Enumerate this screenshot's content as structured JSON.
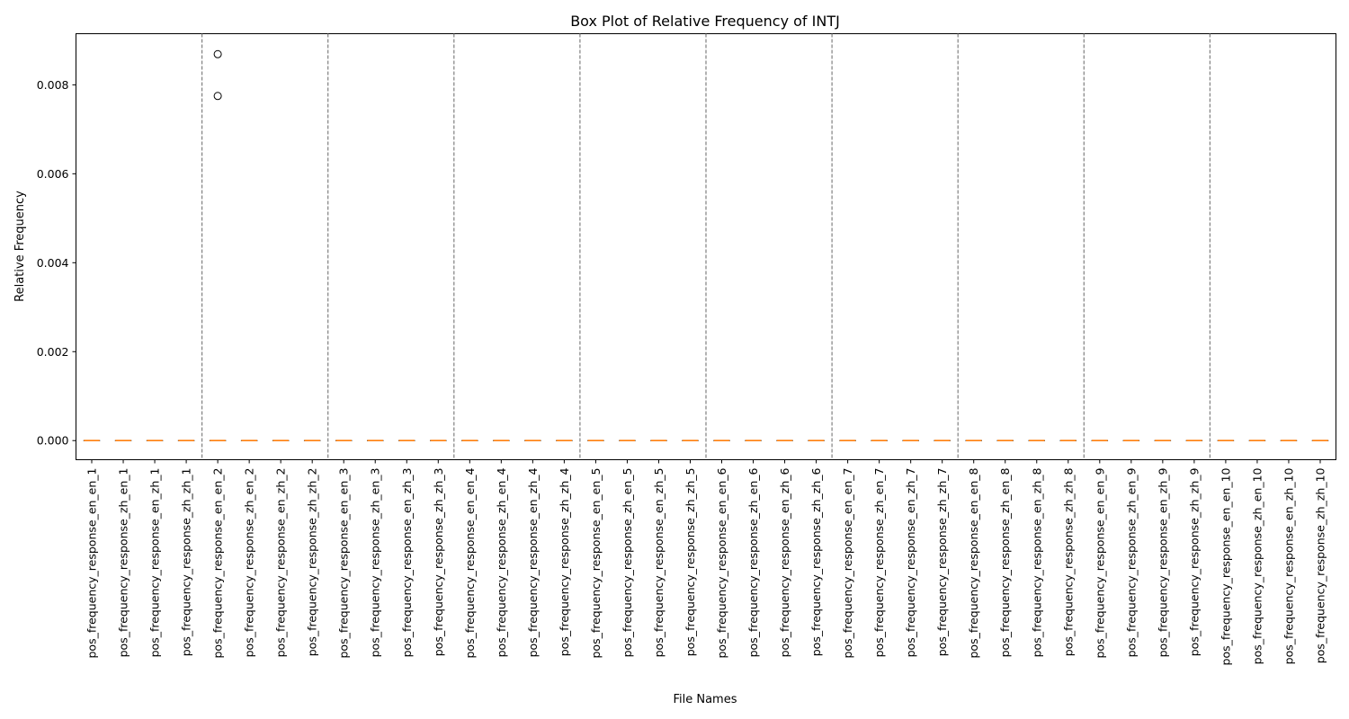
{
  "chart_data": {
    "type": "box",
    "title": "Box Plot of Relative Frequency of INTJ",
    "xlabel": "File Names",
    "ylabel": "Relative Frequency",
    "ylim": [
      -0.00043,
      0.00915
    ],
    "yticks": [
      0.0,
      0.002,
      0.004,
      0.006,
      0.008
    ],
    "ytick_labels": [
      "0.000",
      "0.002",
      "0.004",
      "0.006",
      "0.008"
    ],
    "grid": false,
    "group_separators_after": [
      4,
      8,
      12,
      16,
      20,
      24,
      28,
      32,
      36
    ],
    "colors": {
      "median": "#ff7f0e",
      "box": "#000000",
      "separator": "#808080",
      "outlier_edge": "#000000"
    },
    "categories": [
      "pos_frequency_response_en_en_1",
      "pos_frequency_response_zh_en_1",
      "pos_frequency_response_en_zh_1",
      "pos_frequency_response_zh_zh_1",
      "pos_frequency_response_en_en_2",
      "pos_frequency_response_zh_en_2",
      "pos_frequency_response_en_zh_2",
      "pos_frequency_response_zh_zh_2",
      "pos_frequency_response_en_en_3",
      "pos_frequency_response_zh_en_3",
      "pos_frequency_response_en_zh_3",
      "pos_frequency_response_zh_zh_3",
      "pos_frequency_response_en_en_4",
      "pos_frequency_response_zh_en_4",
      "pos_frequency_response_en_zh_4",
      "pos_frequency_response_zh_zh_4",
      "pos_frequency_response_en_en_5",
      "pos_frequency_response_zh_en_5",
      "pos_frequency_response_en_zh_5",
      "pos_frequency_response_zh_zh_5",
      "pos_frequency_response_en_en_6",
      "pos_frequency_response_zh_en_6",
      "pos_frequency_response_en_zh_6",
      "pos_frequency_response_zh_zh_6",
      "pos_frequency_response_en_en_7",
      "pos_frequency_response_zh_en_7",
      "pos_frequency_response_en_zh_7",
      "pos_frequency_response_zh_zh_7",
      "pos_frequency_response_en_en_8",
      "pos_frequency_response_zh_en_8",
      "pos_frequency_response_en_zh_8",
      "pos_frequency_response_zh_zh_8",
      "pos_frequency_response_en_en_9",
      "pos_frequency_response_zh_en_9",
      "pos_frequency_response_en_zh_9",
      "pos_frequency_response_zh_zh_9",
      "pos_frequency_response_en_en_10",
      "pos_frequency_response_zh_en_10",
      "pos_frequency_response_en_zh_10",
      "pos_frequency_response_zh_zh_10"
    ],
    "boxes": [
      {
        "q1": 0,
        "median": 0,
        "q3": 0,
        "whisker_low": 0,
        "whisker_high": 0,
        "outliers": []
      },
      {
        "q1": 0,
        "median": 0,
        "q3": 0,
        "whisker_low": 0,
        "whisker_high": 0,
        "outliers": []
      },
      {
        "q1": 0,
        "median": 0,
        "q3": 0,
        "whisker_low": 0,
        "whisker_high": 0,
        "outliers": []
      },
      {
        "q1": 0,
        "median": 0,
        "q3": 0,
        "whisker_low": 0,
        "whisker_high": 0,
        "outliers": []
      },
      {
        "q1": 0,
        "median": 0,
        "q3": 0,
        "whisker_low": 0,
        "whisker_high": 0,
        "outliers": [
          0.00869,
          0.00775
        ]
      },
      {
        "q1": 0,
        "median": 0,
        "q3": 0,
        "whisker_low": 0,
        "whisker_high": 0,
        "outliers": []
      },
      {
        "q1": 0,
        "median": 0,
        "q3": 0,
        "whisker_low": 0,
        "whisker_high": 0,
        "outliers": []
      },
      {
        "q1": 0,
        "median": 0,
        "q3": 0,
        "whisker_low": 0,
        "whisker_high": 0,
        "outliers": []
      },
      {
        "q1": 0,
        "median": 0,
        "q3": 0,
        "whisker_low": 0,
        "whisker_high": 0,
        "outliers": []
      },
      {
        "q1": 0,
        "median": 0,
        "q3": 0,
        "whisker_low": 0,
        "whisker_high": 0,
        "outliers": []
      },
      {
        "q1": 0,
        "median": 0,
        "q3": 0,
        "whisker_low": 0,
        "whisker_high": 0,
        "outliers": []
      },
      {
        "q1": 0,
        "median": 0,
        "q3": 0,
        "whisker_low": 0,
        "whisker_high": 0,
        "outliers": []
      },
      {
        "q1": 0,
        "median": 0,
        "q3": 0,
        "whisker_low": 0,
        "whisker_high": 0,
        "outliers": []
      },
      {
        "q1": 0,
        "median": 0,
        "q3": 0,
        "whisker_low": 0,
        "whisker_high": 0,
        "outliers": []
      },
      {
        "q1": 0,
        "median": 0,
        "q3": 0,
        "whisker_low": 0,
        "whisker_high": 0,
        "outliers": []
      },
      {
        "q1": 0,
        "median": 0,
        "q3": 0,
        "whisker_low": 0,
        "whisker_high": 0,
        "outliers": []
      },
      {
        "q1": 0,
        "median": 0,
        "q3": 0,
        "whisker_low": 0,
        "whisker_high": 0,
        "outliers": []
      },
      {
        "q1": 0,
        "median": 0,
        "q3": 0,
        "whisker_low": 0,
        "whisker_high": 0,
        "outliers": []
      },
      {
        "q1": 0,
        "median": 0,
        "q3": 0,
        "whisker_low": 0,
        "whisker_high": 0,
        "outliers": []
      },
      {
        "q1": 0,
        "median": 0,
        "q3": 0,
        "whisker_low": 0,
        "whisker_high": 0,
        "outliers": []
      },
      {
        "q1": 0,
        "median": 0,
        "q3": 0,
        "whisker_low": 0,
        "whisker_high": 0,
        "outliers": []
      },
      {
        "q1": 0,
        "median": 0,
        "q3": 0,
        "whisker_low": 0,
        "whisker_high": 0,
        "outliers": []
      },
      {
        "q1": 0,
        "median": 0,
        "q3": 0,
        "whisker_low": 0,
        "whisker_high": 0,
        "outliers": []
      },
      {
        "q1": 0,
        "median": 0,
        "q3": 0,
        "whisker_low": 0,
        "whisker_high": 0,
        "outliers": []
      },
      {
        "q1": 0,
        "median": 0,
        "q3": 0,
        "whisker_low": 0,
        "whisker_high": 0,
        "outliers": []
      },
      {
        "q1": 0,
        "median": 0,
        "q3": 0,
        "whisker_low": 0,
        "whisker_high": 0,
        "outliers": []
      },
      {
        "q1": 0,
        "median": 0,
        "q3": 0,
        "whisker_low": 0,
        "whisker_high": 0,
        "outliers": []
      },
      {
        "q1": 0,
        "median": 0,
        "q3": 0,
        "whisker_low": 0,
        "whisker_high": 0,
        "outliers": []
      },
      {
        "q1": 0,
        "median": 0,
        "q3": 0,
        "whisker_low": 0,
        "whisker_high": 0,
        "outliers": []
      },
      {
        "q1": 0,
        "median": 0,
        "q3": 0,
        "whisker_low": 0,
        "whisker_high": 0,
        "outliers": []
      },
      {
        "q1": 0,
        "median": 0,
        "q3": 0,
        "whisker_low": 0,
        "whisker_high": 0,
        "outliers": []
      },
      {
        "q1": 0,
        "median": 0,
        "q3": 0,
        "whisker_low": 0,
        "whisker_high": 0,
        "outliers": []
      },
      {
        "q1": 0,
        "median": 0,
        "q3": 0,
        "whisker_low": 0,
        "whisker_high": 0,
        "outliers": []
      },
      {
        "q1": 0,
        "median": 0,
        "q3": 0,
        "whisker_low": 0,
        "whisker_high": 0,
        "outliers": []
      },
      {
        "q1": 0,
        "median": 0,
        "q3": 0,
        "whisker_low": 0,
        "whisker_high": 0,
        "outliers": []
      },
      {
        "q1": 0,
        "median": 0,
        "q3": 0,
        "whisker_low": 0,
        "whisker_high": 0,
        "outliers": []
      },
      {
        "q1": 0,
        "median": 0,
        "q3": 0,
        "whisker_low": 0,
        "whisker_high": 0,
        "outliers": []
      },
      {
        "q1": 0,
        "median": 0,
        "q3": 0,
        "whisker_low": 0,
        "whisker_high": 0,
        "outliers": []
      },
      {
        "q1": 0,
        "median": 0,
        "q3": 0,
        "whisker_low": 0,
        "whisker_high": 0,
        "outliers": []
      },
      {
        "q1": 0,
        "median": 0,
        "q3": 0,
        "whisker_low": 0,
        "whisker_high": 0,
        "outliers": []
      }
    ]
  }
}
